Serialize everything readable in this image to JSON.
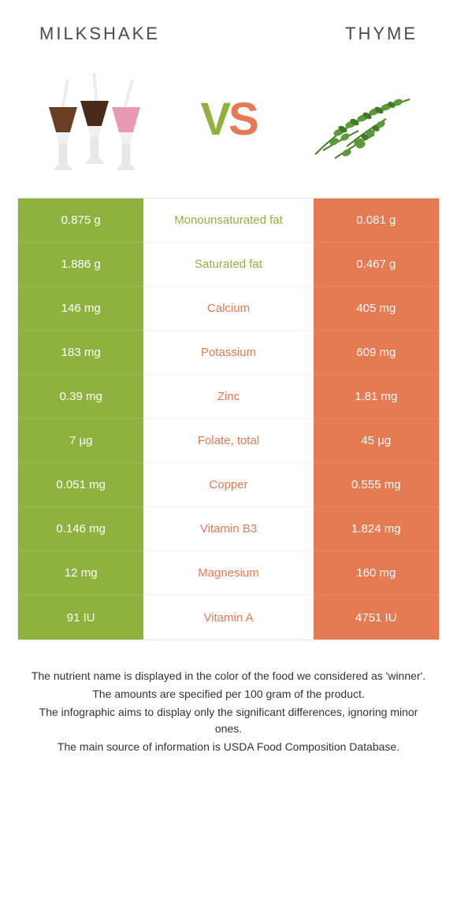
{
  "colors": {
    "left": "#8fb23e",
    "right": "#e67a52",
    "row_border": "#ffffff",
    "text_dark": "#4a4a4a",
    "footnote_text": "#333333"
  },
  "header": {
    "left_title": "Milkshake",
    "right_title": "Thyme",
    "vs_v": "V",
    "vs_s": "S"
  },
  "table": {
    "rows": [
      {
        "left": "0.875 g",
        "label": "Monounsaturated fat",
        "right": "0.081 g",
        "winner": "left"
      },
      {
        "left": "1.886 g",
        "label": "Saturated fat",
        "right": "0.467 g",
        "winner": "left"
      },
      {
        "left": "146 mg",
        "label": "Calcium",
        "right": "405 mg",
        "winner": "right"
      },
      {
        "left": "183 mg",
        "label": "Potassium",
        "right": "609 mg",
        "winner": "right"
      },
      {
        "left": "0.39 mg",
        "label": "Zinc",
        "right": "1.81 mg",
        "winner": "right"
      },
      {
        "left": "7 µg",
        "label": "Folate, total",
        "right": "45 µg",
        "winner": "right"
      },
      {
        "left": "0.051 mg",
        "label": "Copper",
        "right": "0.555 mg",
        "winner": "right"
      },
      {
        "left": "0.146 mg",
        "label": "Vitamin B3",
        "right": "1.824 mg",
        "winner": "right"
      },
      {
        "left": "12 mg",
        "label": "Magnesium",
        "right": "160 mg",
        "winner": "right"
      },
      {
        "left": "91 IU",
        "label": "Vitamin A",
        "right": "4751 IU",
        "winner": "right"
      }
    ]
  },
  "footnote": {
    "lines": [
      "The nutrient name is displayed in the color of the food we considered as 'winner'.",
      "The amounts are specified per 100 gram of the product.",
      "The infographic aims to display only the significant differences, ignoring minor ones.",
      "The main source of information is USDA Food Composition Database."
    ]
  }
}
